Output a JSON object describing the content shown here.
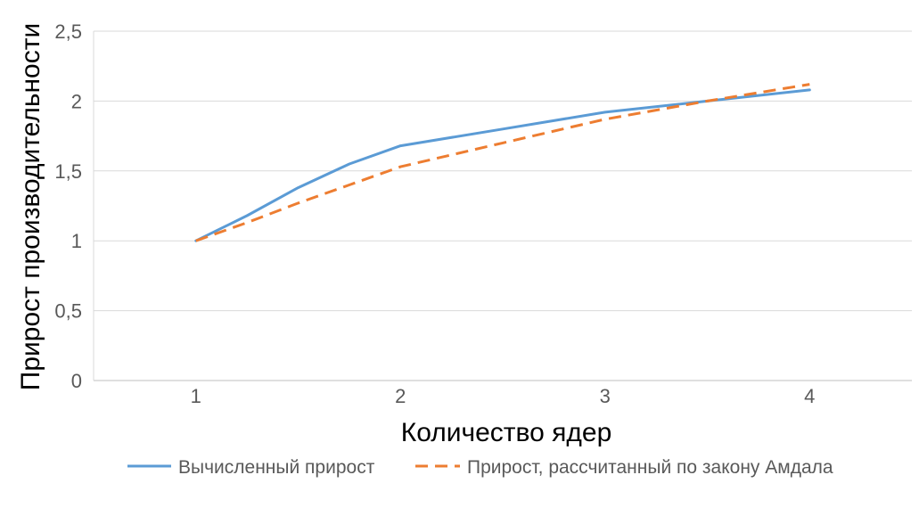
{
  "chart_data": {
    "type": "line",
    "xlabel": "Количество ядер",
    "ylabel": "Прирост производительности",
    "categories": [
      "1",
      "2",
      "3",
      "4"
    ],
    "ylim": [
      0,
      2.5
    ],
    "y_ticks": [
      "0",
      "0,5",
      "1",
      "1,5",
      "2",
      "2,5"
    ],
    "grid": true,
    "legend_position": "bottom",
    "series": [
      {
        "name": "Вычисленный прирост",
        "color": "#5b9bd5",
        "dashed": false,
        "x": [
          1,
          1.25,
          1.5,
          1.75,
          2,
          2.5,
          3,
          3.5,
          4
        ],
        "values": [
          1.0,
          1.18,
          1.38,
          1.55,
          1.68,
          1.8,
          1.92,
          2.0,
          2.08
        ]
      },
      {
        "name": "Прирост, рассчитанный по закону Амдала",
        "color": "#ed7d31",
        "dashed": true,
        "x": [
          1,
          1.25,
          1.5,
          1.75,
          2,
          2.5,
          3,
          3.5,
          4
        ],
        "values": [
          1.0,
          1.13,
          1.27,
          1.4,
          1.53,
          1.7,
          1.87,
          2.0,
          2.12
        ]
      }
    ]
  }
}
